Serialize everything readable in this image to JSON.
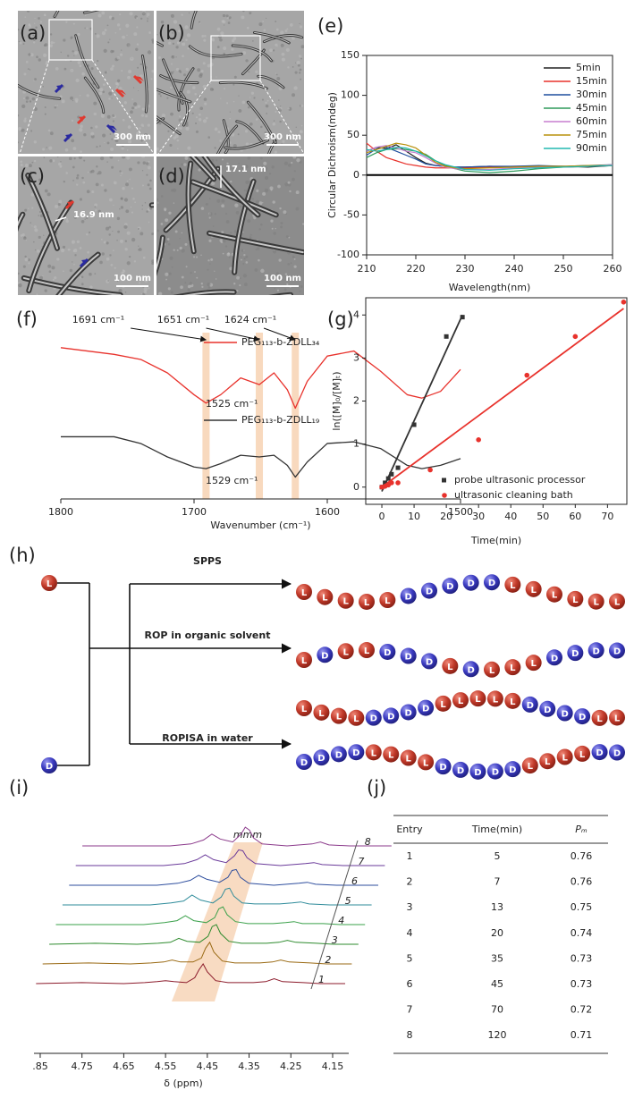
{
  "chart_data": [
    {
      "type": "line",
      "label": "(e)",
      "ylabel": "Circular Dichroism(mdeg)",
      "xlabel": "Wavelength(nm)",
      "x": [
        210,
        212,
        214,
        216,
        218,
        220,
        222,
        224,
        226,
        228,
        230,
        235,
        240,
        245,
        250,
        255,
        260
      ],
      "xlim": [
        210,
        260
      ],
      "xticks": [
        210,
        220,
        230,
        240,
        250,
        260
      ],
      "ylim": [
        -100,
        150
      ],
      "yticks": [
        -100,
        -50,
        0,
        50,
        100,
        150
      ],
      "series": [
        {
          "name": "5min",
          "color": "#222222",
          "values": [
            30,
            35,
            33,
            38,
            30,
            22,
            15,
            12,
            11,
            10,
            10,
            11,
            10,
            11,
            11,
            10,
            12
          ]
        },
        {
          "name": "15min",
          "color": "#e8322c",
          "values": [
            40,
            30,
            22,
            18,
            14,
            12,
            10,
            9,
            9,
            9,
            9,
            10,
            11,
            11,
            10,
            11,
            12
          ]
        },
        {
          "name": "30min",
          "color": "#1f4e9e",
          "values": [
            25,
            33,
            35,
            30,
            25,
            20,
            14,
            12,
            11,
            10,
            10,
            11,
            11,
            12,
            11,
            12,
            13
          ]
        },
        {
          "name": "45min",
          "color": "#2e9a5a",
          "values": [
            22,
            28,
            32,
            33,
            32,
            30,
            26,
            18,
            12,
            8,
            5,
            3,
            5,
            8,
            10,
            11,
            13
          ]
        },
        {
          "name": "60min",
          "color": "#c77fcf",
          "values": [
            30,
            35,
            37,
            34,
            30,
            28,
            22,
            15,
            10,
            8,
            7,
            7,
            9,
            10,
            10,
            11,
            13
          ]
        },
        {
          "name": "75min",
          "color": "#b8900b",
          "values": [
            28,
            32,
            36,
            40,
            38,
            34,
            25,
            16,
            11,
            9,
            8,
            9,
            10,
            11,
            11,
            12,
            12
          ]
        },
        {
          "name": "90min",
          "color": "#22b8b0",
          "values": [
            32,
            30,
            32,
            35,
            34,
            30,
            24,
            18,
            13,
            10,
            7,
            6,
            8,
            9,
            10,
            11,
            12
          ]
        }
      ]
    },
    {
      "type": "spectrum",
      "label": "(f)",
      "xlabel": "Wavenumber (cm⁻¹)",
      "x": [
        1800,
        1780,
        1760,
        1740,
        1720,
        1700,
        1691,
        1680,
        1665,
        1651,
        1640,
        1630,
        1624,
        1615,
        1600,
        1580,
        1560,
        1540,
        1529,
        1515,
        1500
      ],
      "xlim": [
        1800,
        1500
      ],
      "xticks": [
        1800,
        1700,
        1600,
        1500
      ],
      "bands": [
        {
          "value": 1691,
          "label": "1691 cm⁻¹"
        },
        {
          "value": 1651,
          "label": "1651 cm⁻¹"
        },
        {
          "value": 1624,
          "label": "1624 cm⁻¹"
        }
      ],
      "peak_labels": [
        "1525 cm⁻¹",
        "1529 cm⁻¹"
      ],
      "series": [
        {
          "name": "PEG₁₁₃-b-ZDLL₃₄",
          "color": "#e8322c",
          "values": [
            0.9,
            0.88,
            0.86,
            0.83,
            0.75,
            0.62,
            0.57,
            0.62,
            0.72,
            0.68,
            0.75,
            0.65,
            0.54,
            0.7,
            0.85,
            0.88,
            0.76,
            0.62,
            0.6,
            0.64,
            0.77
          ]
        },
        {
          "name": "PEG₁₁₃-b-ZDLL₁₉",
          "color": "#333333",
          "values": [
            0.37,
            0.37,
            0.37,
            0.33,
            0.25,
            0.19,
            0.18,
            0.21,
            0.26,
            0.25,
            0.26,
            0.2,
            0.13,
            0.22,
            0.33,
            0.34,
            0.3,
            0.2,
            0.18,
            0.2,
            0.24
          ]
        }
      ]
    },
    {
      "type": "scatter",
      "label": "(g)",
      "ylabel": "ln([M]₀/[M]ₜ)",
      "xlabel": "Time(min)",
      "xlim": [
        -5,
        76
      ],
      "xticks": [
        0,
        10,
        20,
        30,
        40,
        50,
        60,
        70
      ],
      "ylim": [
        -0.4,
        4.4
      ],
      "yticks": [
        0,
        1,
        2,
        3,
        4
      ],
      "series": [
        {
          "name": "probe ultrasonic processor",
          "color": "#333333",
          "marker": "square",
          "x": [
            0,
            1,
            2,
            3,
            5,
            10,
            20,
            25
          ],
          "values": [
            0,
            0.1,
            0.2,
            0.3,
            0.45,
            1.45,
            3.5,
            3.95
          ],
          "fit_x": [
            0,
            25
          ],
          "fit_y": [
            -0.1,
            4.0
          ]
        },
        {
          "name": "ultrasonic cleaning bath",
          "color": "#e8322c",
          "marker": "circle",
          "x": [
            0,
            1,
            2,
            3,
            5,
            15,
            30,
            45,
            60,
            75
          ],
          "values": [
            0,
            0.02,
            0.05,
            0.1,
            0.1,
            0.4,
            1.1,
            2.6,
            3.5,
            4.3
          ],
          "fit_x": [
            0,
            75
          ],
          "fit_y": [
            0,
            4.15
          ]
        }
      ]
    },
    {
      "type": "stacked-spectra",
      "label": "(i)",
      "xlabel": "δ (ppm)",
      "annotation": "mmm",
      "x": [
        4.86,
        4.75,
        4.65,
        4.6,
        4.57,
        4.55,
        4.53,
        4.5,
        4.48,
        4.47,
        4.46,
        4.45,
        4.43,
        4.4,
        4.37,
        4.34,
        4.31,
        4.29,
        4.27,
        4.22,
        4.18,
        4.12
      ],
      "xlim": [
        4.86,
        4.12
      ],
      "xticks": [
        {
          "value": 4.85,
          "label": ".85"
        },
        4.75,
        4.65,
        4.55,
        4.45,
        4.35,
        4.25,
        4.15
      ],
      "series": [
        {
          "name": "1",
          "color": "#8b1a2a",
          "values": [
            0,
            0.05,
            0,
            0.05,
            0.1,
            0.15,
            0.1,
            0.05,
            0.3,
            0.7,
            1.0,
            0.6,
            0.15,
            0.05,
            0.05,
            0.05,
            0.1,
            0.25,
            0.1,
            0.05,
            0,
            0
          ]
        },
        {
          "name": "2",
          "color": "#9a6a14",
          "values": [
            0,
            0.05,
            0,
            0.05,
            0.1,
            0.2,
            0.1,
            0.1,
            0.3,
            0.8,
            1.1,
            0.6,
            0.15,
            0.05,
            0.05,
            0.05,
            0.1,
            0.2,
            0.1,
            0.05,
            0,
            0
          ]
        },
        {
          "name": "3",
          "color": "#2e8b2e",
          "values": [
            0,
            0.05,
            0,
            0.05,
            0.1,
            0.3,
            0.15,
            0.1,
            0.4,
            0.9,
            1.0,
            0.55,
            0.15,
            0.05,
            0.05,
            0.05,
            0.1,
            0.2,
            0.1,
            0.05,
            0,
            0
          ]
        },
        {
          "name": "4",
          "color": "#3aa04a",
          "values": [
            0,
            0,
            0,
            0.1,
            0.2,
            0.45,
            0.2,
            0.1,
            0.35,
            0.8,
            0.9,
            0.5,
            0.15,
            0.05,
            0.05,
            0.05,
            0.1,
            0.15,
            0.05,
            0.05,
            0,
            0
          ]
        },
        {
          "name": "5",
          "color": "#2e8b9a",
          "values": [
            0,
            0,
            0,
            0.1,
            0.2,
            0.5,
            0.25,
            0.1,
            0.4,
            0.8,
            0.85,
            0.45,
            0.1,
            0.05,
            0.05,
            0.05,
            0.1,
            0.15,
            0.05,
            0,
            0,
            0
          ]
        },
        {
          "name": "6",
          "color": "#2e4e9e",
          "values": [
            0,
            0,
            0,
            0.1,
            0.25,
            0.5,
            0.3,
            0.15,
            0.4,
            0.75,
            0.8,
            0.4,
            0.1,
            0.05,
            0,
            0.05,
            0.1,
            0.15,
            0.05,
            0,
            0,
            0
          ]
        },
        {
          "name": "7",
          "color": "#6a3a9a",
          "values": [
            0,
            0,
            0,
            0.1,
            0.3,
            0.55,
            0.3,
            0.15,
            0.5,
            0.8,
            0.75,
            0.4,
            0.1,
            0.05,
            0,
            0.05,
            0.1,
            0.15,
            0.05,
            0,
            0,
            0
          ]
        },
        {
          "name": "8",
          "color": "#8b3a8b",
          "values": [
            0,
            0,
            0,
            0.1,
            0.3,
            0.6,
            0.35,
            0.2,
            0.6,
            0.95,
            0.8,
            0.4,
            0.1,
            0.05,
            0,
            0.05,
            0.1,
            0.2,
            0.05,
            0,
            0,
            0
          ]
        }
      ]
    }
  ],
  "tem": {
    "panels": [
      {
        "label": "(a)",
        "scale_bar": "300 nm"
      },
      {
        "label": "(b)",
        "scale_bar": "300 nm"
      },
      {
        "label": "(c)",
        "scale_bar": "100 nm",
        "width": "16.9 nm"
      },
      {
        "label": "(d)",
        "scale_bar": "100 nm",
        "width": "17.1 nm"
      }
    ]
  },
  "scheme": {
    "label": "(h)",
    "monomers": [
      "L",
      "D"
    ],
    "routes": [
      {
        "name": "SPPS",
        "chains": [
          "LLLLLDDDDDLLLLLL"
        ]
      },
      {
        "name": "ROP in organic solvent",
        "chains": [
          "LDLLDDDLDLLLDDDD"
        ]
      },
      {
        "name": "ROPISA in water",
        "chains": [
          "LLLLDDDDLLLLLDDDDLL",
          "DDDDLLLLDDDDDLLLLDD"
        ]
      }
    ]
  },
  "table": {
    "label": "(j)",
    "header": [
      "Entry",
      "Time(min)",
      "Pₘ"
    ],
    "rows": [
      [
        1,
        5,
        0.76
      ],
      [
        2,
        7,
        0.76
      ],
      [
        3,
        13,
        0.75
      ],
      [
        4,
        20,
        0.74
      ],
      [
        5,
        35,
        0.73
      ],
      [
        6,
        45,
        0.73
      ],
      [
        7,
        70,
        0.72
      ],
      [
        8,
        120,
        0.71
      ]
    ]
  }
}
